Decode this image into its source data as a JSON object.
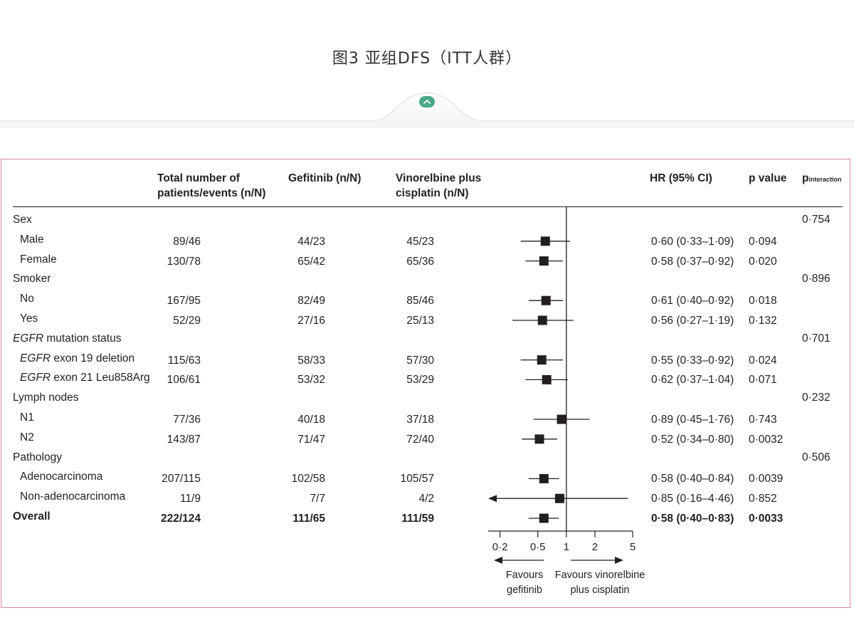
{
  "page": {
    "title": "图3 亚组DFS（ITT人群）"
  },
  "chart_data": {
    "type": "forest",
    "x_scale": "log",
    "xlim": [
      0.15,
      5
    ],
    "reference_line": 1,
    "ticks": [
      {
        "value": 0.2,
        "label": "0·2"
      },
      {
        "value": 0.5,
        "label": "0·5"
      },
      {
        "value": 1,
        "label": "1"
      },
      {
        "value": 2,
        "label": "2"
      },
      {
        "value": 5,
        "label": "5"
      }
    ],
    "columns": {
      "total": "Total number of patients/events (n/N)",
      "total_line1": "Total number of",
      "total_line2": "patients/events (n/N)",
      "gefitinib": "Gefitinib (n/N)",
      "vino_line1": "Vinorelbine plus",
      "vino_line2": "cisplatin (n/N)",
      "hr": "HR (95% CI)",
      "p": "p value",
      "pint_main": "p",
      "pint_sub": "interaction"
    },
    "favours_left_1": "Favours",
    "favours_left_2": "gefitinib",
    "favours_right_1": "Favours vinorelbine",
    "favours_right_2": "plus cisplatin",
    "rows": [
      {
        "kind": "group",
        "label": "Sex",
        "pint": "0·754"
      },
      {
        "kind": "sub",
        "label": "Male",
        "total": "89/46",
        "gef": "44/23",
        "vino": "45/23",
        "hr": 0.6,
        "lo": 0.33,
        "hi": 1.09,
        "hr_text": "0·60 (0·33–1·09)",
        "p": "0·094"
      },
      {
        "kind": "sub",
        "label": "Female",
        "total": "130/78",
        "gef": "65/42",
        "vino": "65/36",
        "hr": 0.58,
        "lo": 0.37,
        "hi": 0.92,
        "hr_text": "0·58 (0·37–0·92)",
        "p": "0·020"
      },
      {
        "kind": "group",
        "label": "Smoker",
        "pint": "0·896"
      },
      {
        "kind": "sub",
        "label": "No",
        "total": "167/95",
        "gef": "82/49",
        "vino": "85/46",
        "hr": 0.61,
        "lo": 0.4,
        "hi": 0.92,
        "hr_text": "0·61 (0·40–0·92)",
        "p": "0·018"
      },
      {
        "kind": "sub",
        "label": "Yes",
        "total": "52/29",
        "gef": "27/16",
        "vino": "25/13",
        "hr": 0.56,
        "lo": 0.27,
        "hi": 1.19,
        "hr_text": "0·56 (0·27–1·19)",
        "p": "0·132"
      },
      {
        "kind": "group",
        "label_italic": "EGFR",
        "label_rest": " mutation status",
        "pint": "0·701"
      },
      {
        "kind": "sub",
        "label_italic": "EGFR",
        "label_rest": " exon 19 deletion",
        "total": "115/63",
        "gef": "58/33",
        "vino": "57/30",
        "hr": 0.55,
        "lo": 0.33,
        "hi": 0.92,
        "hr_text": "0·55 (0·33–0·92)",
        "p": "0·024"
      },
      {
        "kind": "sub",
        "label_italic": "EGFR",
        "label_rest": " exon 21 Leu858Arg",
        "total": "106/61",
        "gef": "53/32",
        "vino": "53/29",
        "hr": 0.62,
        "lo": 0.37,
        "hi": 1.04,
        "hr_text": "0·62 (0·37–1·04)",
        "p": "0·071"
      },
      {
        "kind": "group",
        "label": "Lymph nodes",
        "pint": "0·232"
      },
      {
        "kind": "sub",
        "label": "N1",
        "total": "77/36",
        "gef": "40/18",
        "vino": "37/18",
        "hr": 0.89,
        "lo": 0.45,
        "hi": 1.76,
        "hr_text": "0·89 (0·45–1·76)",
        "p": "0·743"
      },
      {
        "kind": "sub",
        "label": "N2",
        "total": "143/87",
        "gef": "71/47",
        "vino": "72/40",
        "hr": 0.52,
        "lo": 0.34,
        "hi": 0.8,
        "hr_text": "0·52 (0·34–0·80)",
        "p": "0·0032"
      },
      {
        "kind": "group",
        "label": "Pathology",
        "pint": "0·506"
      },
      {
        "kind": "sub",
        "label": "Adenocarcinoma",
        "total": "207/115",
        "gef": "102/58",
        "vino": "105/57",
        "hr": 0.58,
        "lo": 0.4,
        "hi": 0.84,
        "hr_text": "0·58 (0·40–0·84)",
        "p": "0·0039"
      },
      {
        "kind": "sub",
        "label": "Non-adenocarcinoma",
        "total": "11/9",
        "gef": "7/7",
        "vino": "4/2",
        "hr": 0.85,
        "lo": 0.16,
        "hi": 4.46,
        "hr_text": "0·85 (0·16–4·46)",
        "p": "0·852",
        "arrow_left": true
      },
      {
        "kind": "overall",
        "label": "Overall",
        "total": "222/124",
        "gef": "111/65",
        "vino": "111/59",
        "hr": 0.58,
        "lo": 0.4,
        "hi": 0.83,
        "hr_text": "0·58 (0·40–0·83)",
        "p": "0·0033"
      }
    ]
  }
}
